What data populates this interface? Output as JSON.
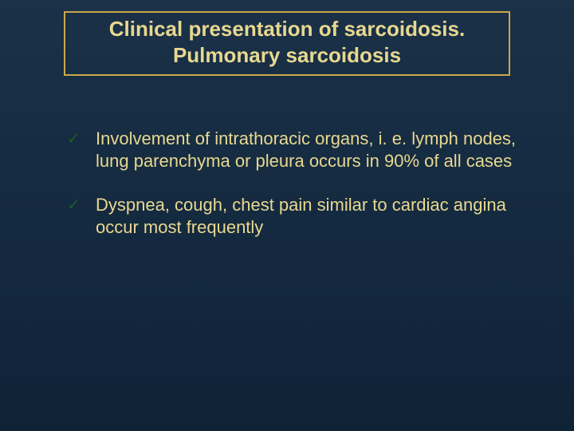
{
  "slide": {
    "background_gradient_top": "#1a3148",
    "background_gradient_bottom": "#0f2337",
    "title_border_color": "#c9a94a",
    "title_text_color": "#e8d890",
    "body_text_color": "#e8d890",
    "check_color": "#1d5a2a",
    "title_line1": "Clinical presentation of sarcoidosis.",
    "title_line2": "Pulmonary sarcoidosis",
    "title_fontsize": 26,
    "body_fontsize": 22,
    "bullets": [
      "Involvement of intrathoracic organs, i. e. lymph nodes, lung parenchyma or pleura occurs in 90% of all cases",
      "Dyspnea, cough, chest pain similar to cardiac angina occur most frequently"
    ],
    "bullet_glyph": "✓"
  }
}
